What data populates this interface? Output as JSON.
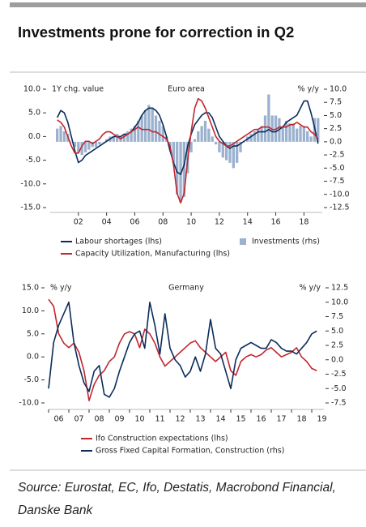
{
  "header": {
    "title": "Investments prone for correction in Q2"
  },
  "chart_data": [
    {
      "type": "combo",
      "title": "Euro area",
      "y_label": "1Y chg. value",
      "y2_label": "% y/y",
      "x": [
        2000.5,
        2000.75,
        2001,
        2001.25,
        2001.5,
        2001.75,
        2002,
        2002.25,
        2002.5,
        2002.75,
        2003,
        2003.25,
        2003.5,
        2003.75,
        2004,
        2004.25,
        2004.5,
        2004.75,
        2005,
        2005.25,
        2005.5,
        2005.75,
        2006,
        2006.25,
        2006.5,
        2006.75,
        2007,
        2007.25,
        2007.5,
        2007.75,
        2008,
        2008.25,
        2008.5,
        2008.75,
        2009,
        2009.25,
        2009.5,
        2009.75,
        2010,
        2010.25,
        2010.5,
        2010.75,
        2011,
        2011.25,
        2011.5,
        2011.75,
        2012,
        2012.25,
        2012.5,
        2012.75,
        2013,
        2013.25,
        2013.5,
        2013.75,
        2014,
        2014.25,
        2014.5,
        2014.75,
        2015,
        2015.25,
        2015.5,
        2015.75,
        2016,
        2016.25,
        2016.5,
        2016.75,
        2017,
        2017.25,
        2017.5,
        2017.75,
        2018,
        2018.25,
        2018.5,
        2018.75,
        2019
      ],
      "series": [
        {
          "name": "Labour shortages (lhs)",
          "color": "#0b2d5b",
          "type": "line",
          "values": [
            4,
            5.5,
            5,
            3,
            0,
            -3,
            -5.5,
            -5,
            -4,
            -3.5,
            -3,
            -2.5,
            -2,
            -1.5,
            -1,
            -0.5,
            0,
            0,
            0,
            0.5,
            0.5,
            1,
            2,
            3,
            4.5,
            5.5,
            6,
            6,
            5.5,
            4.5,
            2.5,
            0,
            -3,
            -5.5,
            -7.5,
            -8,
            -6,
            -2,
            0.5,
            2.5,
            3.5,
            4.5,
            5,
            5,
            4,
            2,
            0,
            -1,
            -2,
            -2.5,
            -2,
            -2,
            -1.5,
            -1,
            -0.5,
            0,
            0.5,
            1,
            1,
            1,
            1.5,
            1,
            1,
            1.5,
            2,
            3,
            3.5,
            4,
            4.5,
            6,
            7.5,
            7.5,
            5,
            2,
            -1.5
          ]
        },
        {
          "name": "Capacity Utilization, Manufacturing (lhs)",
          "color": "#c1272d",
          "type": "line",
          "values": [
            3.5,
            3,
            2,
            0,
            -2,
            -3.5,
            -3.5,
            -2,
            -1,
            -1,
            -1.5,
            -1,
            -0.5,
            0.5,
            1,
            1,
            0.5,
            0,
            -0.5,
            0,
            0.5,
            1,
            1.5,
            2,
            1.5,
            1.5,
            1.5,
            1,
            1,
            0.5,
            0,
            -0.5,
            -2,
            -6,
            -12,
            -14,
            -12,
            -5,
            1,
            6,
            8,
            7.5,
            6,
            4,
            2,
            0,
            -1,
            -1.5,
            -2,
            -2,
            -1.5,
            -1,
            -0.5,
            0,
            0.5,
            1,
            1.5,
            1.5,
            2,
            2,
            2,
            1.5,
            1.5,
            2,
            2,
            2,
            2.5,
            2.5,
            3,
            2.5,
            2,
            2,
            1,
            0.5,
            -0.5
          ]
        },
        {
          "name": "Investments (rhs)",
          "color": "#9bb1cf",
          "type": "bar",
          "axis": "y2",
          "values": [
            2.5,
            3,
            2,
            1.5,
            0,
            -1,
            -2,
            -2.5,
            -2,
            -1.5,
            -1,
            -1,
            -0.5,
            0,
            0.5,
            1,
            1,
            1.5,
            1,
            1.5,
            2,
            2.5,
            3,
            4,
            5,
            6,
            7,
            6.5,
            5,
            4,
            3,
            1,
            -1,
            -4,
            -10,
            -11.5,
            -10.5,
            -6,
            -2,
            0.5,
            2,
            3,
            4,
            2.5,
            1,
            -0.5,
            -2,
            -3,
            -3.5,
            -4,
            -5,
            -4,
            -2,
            0,
            1,
            1.5,
            2,
            2.5,
            3,
            5,
            9,
            5,
            5,
            4.5,
            3,
            4,
            3.5,
            3.5,
            2.5,
            3,
            3,
            2,
            1,
            4.5,
            4.5
          ]
        }
      ],
      "xlim": [
        2000,
        2019.3
      ],
      "xticks": [
        {
          "value": 2002,
          "label": "02"
        },
        {
          "value": 2004,
          "label": "04"
        },
        {
          "value": 2006,
          "label": "06"
        },
        {
          "value": 2008,
          "label": "08"
        },
        {
          "value": 2010,
          "label": "10"
        },
        {
          "value": 2012,
          "label": "12"
        },
        {
          "value": 2014,
          "label": "14"
        },
        {
          "value": 2016,
          "label": "16"
        },
        {
          "value": 2018,
          "label": "18"
        }
      ],
      "ylim": [
        -15,
        10
      ],
      "yticks": [
        {
          "value": 10,
          "label": "10.0"
        },
        {
          "value": 5,
          "label": "5.0"
        },
        {
          "value": 0,
          "label": "0.0"
        },
        {
          "value": -5,
          "label": "-5.0"
        },
        {
          "value": -10,
          "label": "-10.0"
        },
        {
          "value": -15,
          "label": "-15.0"
        }
      ],
      "y2lim": [
        -12.5,
        10
      ],
      "y2ticks": [
        {
          "value": 10,
          "label": "10.0"
        },
        7.5,
        {
          "value": 5,
          "label": "5.0"
        },
        2.5,
        {
          "value": 0,
          "label": "0.0"
        },
        -2.5,
        {
          "value": -5,
          "label": "-5.0"
        },
        -7.5,
        {
          "value": -10,
          "label": "-10.0"
        },
        -12.5
      ]
    },
    {
      "type": "line",
      "title": "Germany",
      "y_label": "% y/y",
      "y2_label": "% y/y",
      "x": [
        2006,
        2006.25,
        2006.5,
        2006.75,
        2007,
        2007.25,
        2007.5,
        2007.75,
        2008,
        2008.25,
        2008.5,
        2008.75,
        2009,
        2009.25,
        2009.5,
        2009.75,
        2010,
        2010.25,
        2010.5,
        2010.75,
        2011,
        2011.25,
        2011.5,
        2011.75,
        2012,
        2012.25,
        2012.5,
        2012.75,
        2013,
        2013.25,
        2013.5,
        2013.75,
        2014,
        2014.25,
        2014.5,
        2014.75,
        2015,
        2015.25,
        2015.5,
        2015.75,
        2016,
        2016.25,
        2016.5,
        2016.75,
        2017,
        2017.25,
        2017.5,
        2017.75,
        2018,
        2018.25,
        2018.5,
        2018.75,
        2019,
        2019.25
      ],
      "series": [
        {
          "name": "Ifo Construction expectations (lhs)",
          "color": "#c1272d",
          "type": "line",
          "values": [
            12.5,
            11,
            5,
            3,
            2,
            3,
            1,
            -3,
            -9.5,
            -6,
            -4,
            -3,
            -1,
            0,
            3,
            5,
            5.5,
            5,
            2,
            6,
            5,
            3,
            0,
            -2,
            -1,
            0,
            1,
            2,
            3,
            3.5,
            2,
            1,
            0,
            -1,
            0,
            1,
            -3,
            -4,
            -1,
            0,
            0.5,
            0,
            0.5,
            1.5,
            2,
            1,
            0,
            0.5,
            1,
            2,
            0,
            -1,
            -2.5,
            -3
          ]
        },
        {
          "name": "Gross Fixed Capital Formation, Construction (rhs)",
          "color": "#0b2d5b",
          "type": "line",
          "axis": "y2",
          "values": [
            -5,
            3,
            6,
            8,
            10,
            3,
            -1,
            -4,
            -5.5,
            -2,
            -1,
            -6,
            -6.5,
            -5,
            -2,
            0.5,
            3,
            4.5,
            5,
            2,
            10,
            6,
            1,
            8,
            2,
            0,
            -1,
            -3,
            -2,
            0.5,
            -2,
            1,
            7,
            2,
            1,
            -2,
            -5,
            0,
            2,
            2.5,
            3,
            2.5,
            2,
            2,
            3.5,
            3,
            2,
            1.5,
            1.5,
            1,
            2,
            3,
            4.5,
            5
          ]
        }
      ],
      "xlim": [
        2006,
        2019.6
      ],
      "xticks": [
        {
          "value": 2006,
          "label": "06"
        },
        {
          "value": 2007,
          "label": "07"
        },
        {
          "value": 2008,
          "label": "08"
        },
        {
          "value": 2009,
          "label": "09"
        },
        {
          "value": 2010,
          "label": "10"
        },
        {
          "value": 2011,
          "label": "11"
        },
        {
          "value": 2012,
          "label": "12"
        },
        {
          "value": 2013,
          "label": "13"
        },
        {
          "value": 2014,
          "label": "14"
        },
        {
          "value": 2015,
          "label": "15"
        },
        {
          "value": 2016,
          "label": "16"
        },
        {
          "value": 2017,
          "label": "17"
        },
        {
          "value": 2018,
          "label": "18"
        },
        {
          "value": 2019,
          "label": "19"
        }
      ],
      "ylim": [
        -10,
        15
      ],
      "yticks": [
        {
          "value": 15,
          "label": "15.0"
        },
        {
          "value": 10,
          "label": "10.0"
        },
        {
          "value": 5,
          "label": "5.0"
        },
        {
          "value": 0,
          "label": "0.0"
        },
        {
          "value": -5,
          "label": "-5.0"
        },
        {
          "value": -10,
          "label": "-10.0"
        }
      ],
      "y2lim": [
        -7.5,
        12.5
      ],
      "y2ticks": [
        12.5,
        {
          "value": 10,
          "label": "10.0"
        },
        7.5,
        {
          "value": 5,
          "label": "5.0"
        },
        2.5,
        {
          "value": 0,
          "label": "0.0"
        },
        -2.5,
        {
          "value": -5,
          "label": "-5.0"
        },
        -7.5
      ]
    }
  ],
  "source": "Source: Eurostat, EC, Ifo, Destatis, Macrobond Financial, Danske Bank"
}
